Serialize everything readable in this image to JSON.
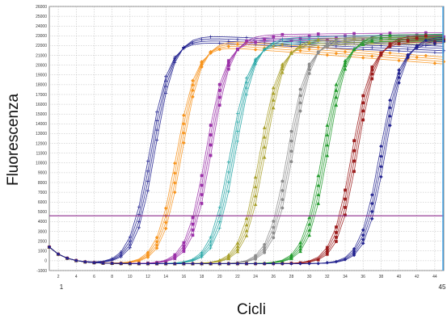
{
  "chart_data": {
    "type": "line",
    "xlabel": "Cicli",
    "ylabel": "Fluorescenza",
    "xlim": [
      1,
      45
    ],
    "ylim": [
      -1000,
      26000
    ],
    "x_edge_labels": [
      "1",
      "45"
    ],
    "x_ticks": [
      2,
      4,
      6,
      8,
      10,
      12,
      14,
      16,
      18,
      20,
      22,
      24,
      26,
      28,
      30,
      32,
      34,
      36,
      38,
      40,
      42,
      44
    ],
    "y_ticks": [
      -1000,
      0,
      1000,
      2000,
      3000,
      4000,
      5000,
      6000,
      7000,
      8000,
      9000,
      10000,
      11000,
      12000,
      13000,
      14000,
      15000,
      16000,
      17000,
      18000,
      19000,
      20000,
      21000,
      22000,
      23000,
      24000,
      25000,
      26000
    ],
    "grid": true,
    "threshold": {
      "value": 4600,
      "color": "#8b2a8b"
    },
    "marker_line": {
      "x": 45,
      "color": "#3aa0e8"
    },
    "series": [
      {
        "color": "#1a1a8c",
        "marker": "cross",
        "midpoint": 12.6,
        "top": 22800,
        "drift": -40
      },
      {
        "color": "#f7941d",
        "marker": "diamond",
        "midpoint": 15.6,
        "top": 22300,
        "drift": -70
      },
      {
        "color": "#9b30a8",
        "marker": "square",
        "midpoint": 18.9,
        "top": 22900,
        "drift": 10
      },
      {
        "color": "#1fa3a3",
        "marker": "cross",
        "midpoint": 21.6,
        "top": 22600,
        "drift": 20
      },
      {
        "color": "#a8a02a",
        "marker": "triangle",
        "midpoint": 24.9,
        "top": 22500,
        "drift": 10
      },
      {
        "color": "#8c8c8c",
        "marker": "circle",
        "midpoint": 28.0,
        "top": 22700,
        "drift": 10
      },
      {
        "color": "#1f9a2a",
        "marker": "triangle",
        "midpoint": 31.9,
        "top": 22900,
        "drift": 0
      },
      {
        "color": "#9b1b1b",
        "marker": "square",
        "midpoint": 35.2,
        "top": 22800,
        "drift": 0
      },
      {
        "color": "#22228f",
        "marker": "diamond",
        "midpoint": 38.3,
        "top": 22700,
        "drift": 0
      }
    ]
  }
}
